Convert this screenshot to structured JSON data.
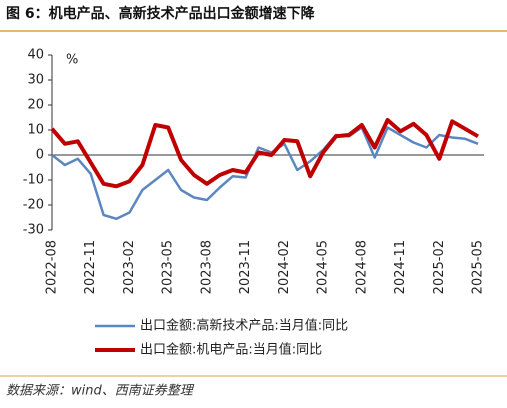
{
  "chart_data": {
    "type": "line",
    "title": "图 6：机电产品、高新技术产品出口金额增速下降",
    "y_label": "%",
    "source": "数据来源：wind、西南证券整理",
    "categories": [
      "2022-08",
      null,
      null,
      "2022-11",
      null,
      null,
      "2023-02",
      null,
      null,
      "2023-05",
      null,
      null,
      "2023-08",
      null,
      null,
      "2023-11",
      null,
      null,
      "2024-02",
      null,
      null,
      "2024-05",
      null,
      null,
      "2024-08",
      null,
      null,
      "2024-11",
      null,
      null,
      "2025-02",
      null,
      null,
      "2025-05"
    ],
    "series": [
      {
        "name": "出口金额:高新技术产品:当月值:同比",
        "color": "#5b87c0",
        "values": [
          0,
          -4,
          -1.5,
          -7.5,
          -24,
          -25.5,
          -23,
          -14,
          -10,
          -6,
          -14,
          -17,
          -18,
          -13,
          -8.5,
          -9,
          3,
          1,
          4.5,
          -6,
          -2.5,
          2,
          8,
          7.5,
          11,
          -1,
          11,
          8,
          5,
          3,
          8,
          7,
          6.5,
          4.5
        ]
      },
      {
        "name": "出口金额:机电产品:当月值:同比",
        "color": "#c00000",
        "values": [
          10.5,
          4.5,
          5.5,
          -3,
          -11.5,
          -12.5,
          -10.5,
          -4,
          12,
          11,
          -2,
          -8,
          -11.5,
          -8,
          -6,
          -7,
          1,
          0,
          6,
          5.5,
          -8.5,
          1,
          7.5,
          8,
          12,
          3,
          14,
          9.5,
          12.5,
          8,
          -1.5,
          13.5,
          10.5,
          7.5
        ]
      }
    ],
    "ylim": [
      -30,
      40
    ],
    "yticks": [
      -30,
      -20,
      -10,
      0,
      10,
      20,
      30,
      40
    ],
    "grid": false
  }
}
